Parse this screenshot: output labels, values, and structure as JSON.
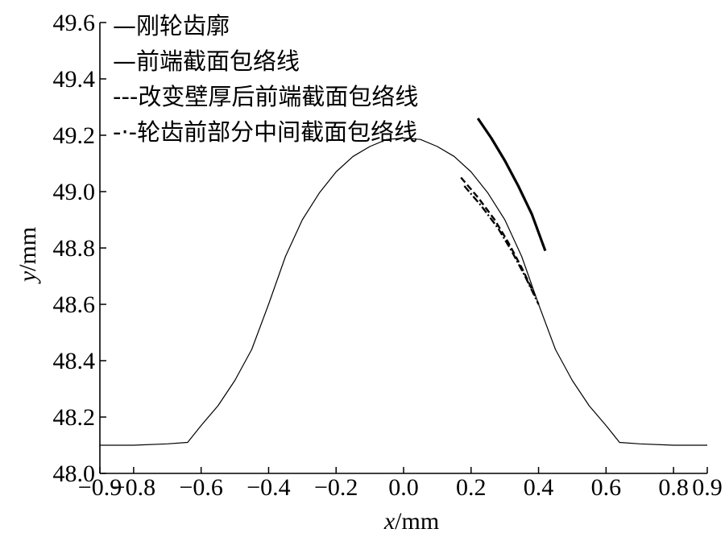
{
  "chart_data": {
    "type": "line",
    "title": "",
    "xlabel_var": "x",
    "xlabel_unit": "/mm",
    "ylabel_var": "y",
    "ylabel_unit": "/mm",
    "xlim": [
      -0.9,
      0.9
    ],
    "ylim": [
      48.0,
      49.6
    ],
    "xticks": [
      "−0.9",
      "−0.8",
      "−0.6",
      "−0.4",
      "−0.2",
      "0.0",
      "0.2",
      "0.4",
      "0.6",
      "0.8",
      "0.9"
    ],
    "xtick_values": [
      -0.9,
      -0.8,
      -0.6,
      -0.4,
      -0.2,
      0.0,
      0.2,
      0.4,
      0.6,
      0.8,
      0.9
    ],
    "yticks": [
      "48.0",
      "48.2",
      "48.4",
      "48.6",
      "48.8",
      "49.0",
      "49.2",
      "49.4",
      "49.6"
    ],
    "ytick_values": [
      48.0,
      48.2,
      48.4,
      48.6,
      48.8,
      49.0,
      49.2,
      49.4,
      49.6
    ],
    "grid": false,
    "legend_position": "top-left",
    "series": [
      {
        "name": "刚轮齿廓",
        "legend_marker": "—",
        "style": "solid-thin",
        "x": [
          -0.9,
          -0.8,
          -0.7,
          -0.64,
          -0.6,
          -0.55,
          -0.5,
          -0.45,
          -0.4,
          -0.35,
          -0.3,
          -0.25,
          -0.2,
          -0.15,
          -0.1,
          -0.05,
          0.0,
          0.05,
          0.1,
          0.15,
          0.2,
          0.25,
          0.3,
          0.35,
          0.4,
          0.45,
          0.5,
          0.55,
          0.6,
          0.64,
          0.7,
          0.8,
          0.9
        ],
        "y": [
          48.1,
          48.1,
          48.105,
          48.11,
          48.17,
          48.24,
          48.33,
          48.44,
          48.6,
          48.77,
          48.9,
          48.995,
          49.07,
          49.125,
          49.16,
          49.185,
          49.19,
          49.185,
          49.16,
          49.125,
          49.07,
          48.995,
          48.9,
          48.77,
          48.6,
          48.44,
          48.33,
          48.24,
          48.17,
          48.11,
          48.105,
          48.1,
          48.1
        ]
      },
      {
        "name": "前端截面包络线",
        "legend_marker": "—",
        "style": "solid-thick",
        "x": [
          0.22,
          0.26,
          0.3,
          0.34,
          0.38,
          0.42
        ],
        "y": [
          49.26,
          49.19,
          49.11,
          49.02,
          48.92,
          48.79
        ]
      },
      {
        "name": "改变壁厚后前端截面包络线",
        "legend_marker": "---",
        "style": "dashed",
        "x": [
          0.17,
          0.22,
          0.27,
          0.31,
          0.35,
          0.39
        ],
        "y": [
          49.05,
          48.98,
          48.9,
          48.82,
          48.73,
          48.63
        ]
      },
      {
        "name": "轮齿前部分中间截面包络线",
        "legend_marker": "-·-",
        "style": "dashdot",
        "x": [
          0.18,
          0.23,
          0.28,
          0.32,
          0.36,
          0.4
        ],
        "y": [
          49.02,
          48.95,
          48.87,
          48.79,
          48.7,
          48.6
        ]
      }
    ]
  }
}
